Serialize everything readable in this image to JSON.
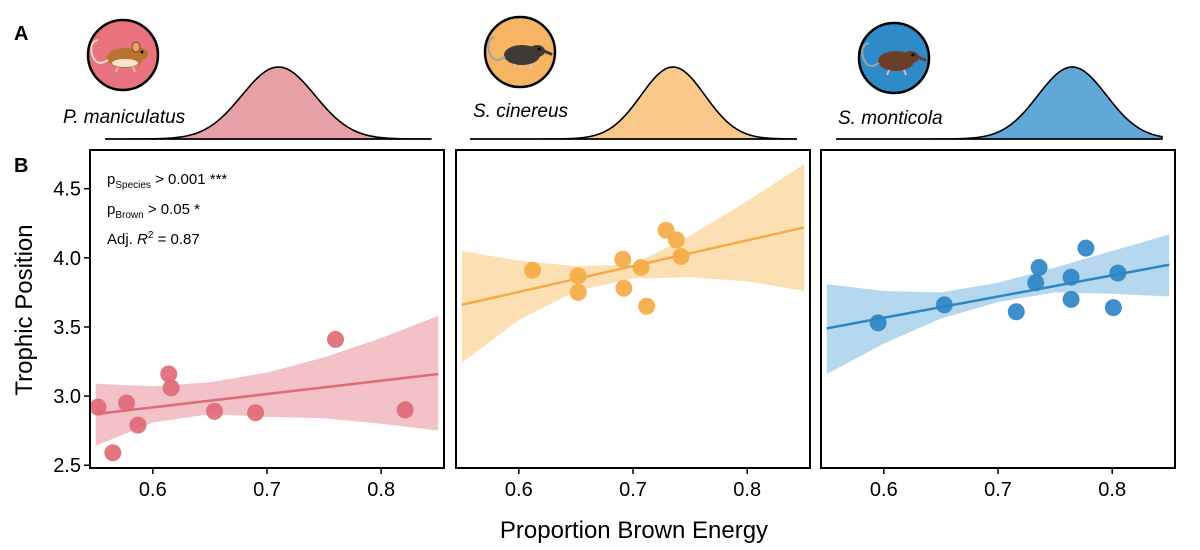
{
  "panel_labels": {
    "a": "A",
    "b": "B"
  },
  "axes": {
    "xlabel": "Proportion Brown Energy",
    "ylabel": "Trophic Position"
  },
  "stats": {
    "line1": {
      "base": "p",
      "sub": "Species",
      "rest": " > 0.001 ***"
    },
    "line2": {
      "base": "p",
      "sub": "Brown",
      "rest": "  > 0.05 *"
    },
    "line3": {
      "pre": "Adj. ",
      "r": "R",
      "sup": "2",
      "rest": " = 0.87"
    }
  },
  "chart_data": [
    {
      "type": "scatter",
      "species": "P. maniculatus",
      "color": "#e06a78",
      "band_color": "#f0b7be",
      "density_color": "#e8a0a7",
      "icon": "deer-mouse-icon",
      "icon_bg": "#e8737f",
      "x": [
        0.552,
        0.565,
        0.577,
        0.587,
        0.614,
        0.616,
        0.654,
        0.69,
        0.76,
        0.821
      ],
      "y": [
        2.92,
        2.59,
        2.95,
        2.79,
        3.16,
        3.06,
        2.89,
        2.88,
        3.41,
        2.9
      ],
      "fit": {
        "x": [
          0.55,
          0.85
        ],
        "y": [
          2.87,
          3.16
        ]
      },
      "ci": {
        "x": [
          0.55,
          0.6,
          0.65,
          0.7,
          0.75,
          0.8,
          0.85
        ],
        "lower": [
          2.64,
          2.81,
          2.87,
          2.85,
          2.84,
          2.8,
          2.75
        ],
        "upper": [
          3.09,
          3.07,
          3.1,
          3.17,
          3.28,
          3.42,
          3.58
        ]
      },
      "density": {
        "center": 0.71,
        "sd": 0.032
      },
      "xlim": [
        0.545,
        0.855
      ],
      "ylim": [
        2.48,
        4.78
      ],
      "xticks": [
        "0.6",
        "0.7",
        "0.8"
      ],
      "yticks": [
        "2.5",
        "3.0",
        "3.5",
        "4.0",
        "4.5"
      ]
    },
    {
      "type": "scatter",
      "species": "S. cinereus",
      "color": "#f5ab45",
      "band_color": "#fcd9a6",
      "density_color": "#fac88a",
      "icon": "shrew-icon",
      "icon_bg": "#f7b563",
      "x": [
        0.612,
        0.652,
        0.652,
        0.691,
        0.692,
        0.707,
        0.712,
        0.729,
        0.738,
        0.742
      ],
      "y": [
        3.91,
        3.87,
        3.75,
        3.99,
        3.78,
        3.93,
        3.65,
        4.2,
        4.13,
        4.01
      ],
      "fit": {
        "x": [
          0.55,
          0.85
        ],
        "y": [
          3.66,
          4.22
        ]
      },
      "ci": {
        "x": [
          0.55,
          0.6,
          0.65,
          0.7,
          0.75,
          0.8,
          0.85
        ],
        "lower": [
          3.24,
          3.55,
          3.76,
          3.85,
          3.86,
          3.83,
          3.76
        ],
        "upper": [
          4.05,
          3.98,
          3.94,
          3.95,
          4.16,
          4.41,
          4.68
        ]
      },
      "density": {
        "center": 0.735,
        "sd": 0.028
      },
      "xlim": [
        0.545,
        0.855
      ],
      "ylim": [
        2.48,
        4.78
      ],
      "xticks": [
        "0.6",
        "0.7",
        "0.8"
      ],
      "yticks": []
    },
    {
      "type": "scatter",
      "species": "S. monticola",
      "color": "#2e86c4",
      "band_color": "#a9d1ec",
      "density_color": "#5fa8d8",
      "icon": "water-shrew-icon",
      "icon_bg": "#2f8ac8",
      "x": [
        0.595,
        0.653,
        0.716,
        0.733,
        0.736,
        0.764,
        0.764,
        0.777,
        0.801,
        0.805
      ],
      "y": [
        3.53,
        3.66,
        3.61,
        3.82,
        3.93,
        3.86,
        3.7,
        4.07,
        3.64,
        3.89
      ],
      "fit": {
        "x": [
          0.55,
          0.85
        ],
        "y": [
          3.49,
          3.95
        ]
      },
      "ci": {
        "x": [
          0.55,
          0.6,
          0.65,
          0.7,
          0.75,
          0.8,
          0.85
        ],
        "lower": [
          3.16,
          3.38,
          3.56,
          3.68,
          3.75,
          3.74,
          3.72
        ],
        "upper": [
          3.81,
          3.76,
          3.75,
          3.82,
          3.93,
          4.05,
          4.17
        ]
      },
      "density": {
        "center": 0.765,
        "sd": 0.03
      },
      "xlim": [
        0.545,
        0.855
      ],
      "ylim": [
        2.48,
        4.78
      ],
      "xticks": [
        "0.6",
        "0.7",
        "0.8"
      ],
      "yticks": []
    }
  ]
}
